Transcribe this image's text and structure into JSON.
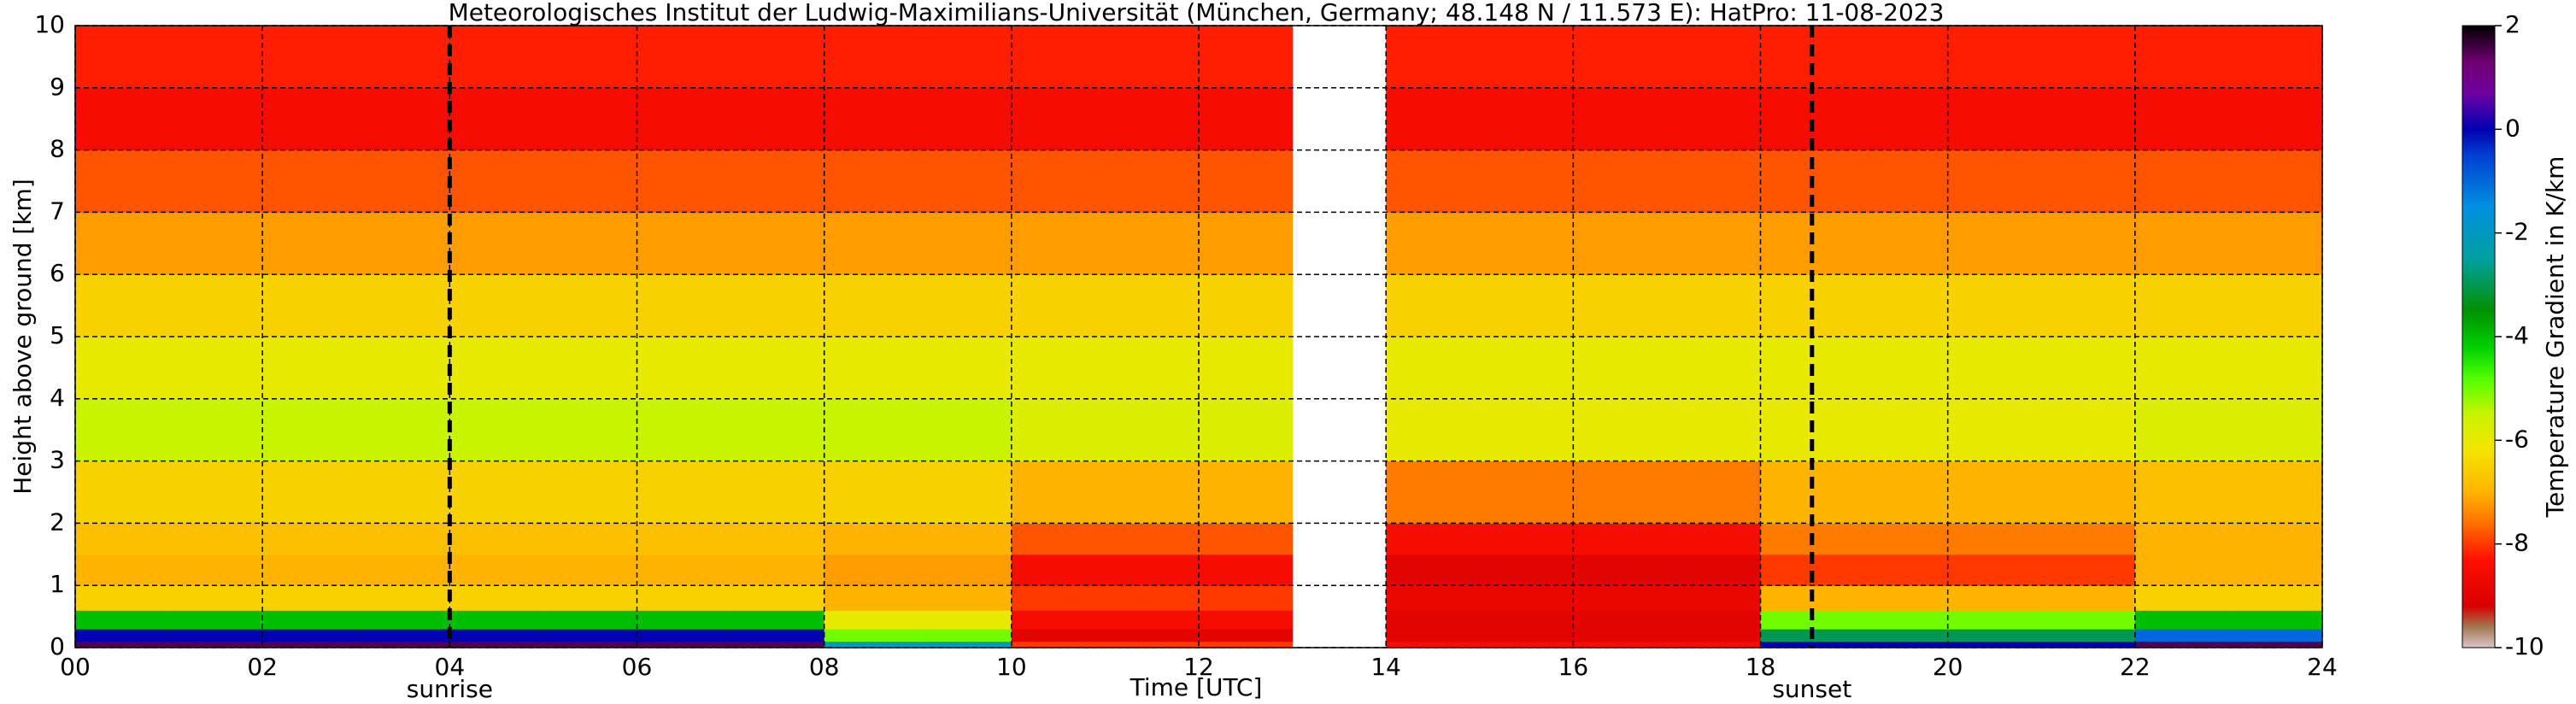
{
  "chart_data": {
    "type": "heatmap",
    "title": "Meteorologisches Institut der Ludwig-Maximilians-Universität (München, Germany; 48.148 N / 11.573 E):    HatPro: 11-08-2023",
    "xlabel": "Time [UTC]",
    "ylabel": "Height above ground [km]",
    "colorbar_label": "Temperature Gradient in K/km",
    "x_bins": [
      0,
      1,
      2,
      3,
      4,
      5,
      6,
      7,
      8,
      9,
      10,
      11,
      12,
      13,
      14,
      15,
      16,
      17,
      18,
      19,
      20,
      21,
      22,
      23,
      24
    ],
    "y_bins": [
      0,
      0.1,
      0.3,
      0.6,
      1,
      1.5,
      2,
      3,
      4,
      5,
      6,
      7,
      8,
      9,
      10
    ],
    "z": [
      [
        1.5,
        1.5,
        1.5,
        1.5,
        1.5,
        1.5,
        1.5,
        1.5,
        -2,
        -2,
        -8,
        -8,
        -8,
        null,
        -8.5,
        -8.5,
        -8.5,
        -8.5,
        0,
        0,
        0,
        0,
        1.5,
        1.5
      ],
      [
        0,
        0,
        0,
        0,
        0,
        0,
        0,
        0,
        -5,
        -5,
        -9,
        -9,
        -9,
        null,
        -9,
        -9,
        -9,
        -9,
        -3,
        -3,
        -3,
        -3,
        -1,
        -1
      ],
      [
        -4,
        -4,
        -4,
        -4,
        -4,
        -4,
        -4,
        -4,
        -6,
        -6,
        -8.5,
        -8.5,
        -8.5,
        null,
        -9,
        -9,
        -9,
        -9,
        -5,
        -5,
        -5,
        -5,
        -4,
        -4
      ],
      [
        -6.5,
        -6.5,
        -6.5,
        -6.5,
        -6.5,
        -6.5,
        -6.5,
        -6.5,
        -7,
        -7,
        -8,
        -8,
        -8,
        null,
        -8.8,
        -8.8,
        -8.8,
        -8.8,
        -7,
        -7,
        -7,
        -7,
        -6.5,
        -6.5
      ],
      [
        -7,
        -7,
        -7,
        -7,
        -7,
        -7,
        -7,
        -7,
        -7.2,
        -7.2,
        -8.5,
        -8.5,
        -8.5,
        null,
        -9,
        -9,
        -9,
        -9,
        -8,
        -8,
        -8,
        -8,
        -7,
        -7
      ],
      [
        -6.8,
        -6.8,
        -6.8,
        -6.8,
        -6.8,
        -6.8,
        -6.8,
        -6.8,
        -7,
        -7,
        -7.8,
        -7.8,
        -7.8,
        null,
        -8.5,
        -8.5,
        -8.5,
        -8.5,
        -7.5,
        -7.5,
        -7.5,
        -7.5,
        -7,
        -7
      ],
      [
        -6.5,
        -6.5,
        -6.5,
        -6.5,
        -6.5,
        -6.5,
        -6.5,
        -6.5,
        -6.5,
        -6.5,
        -7,
        -7,
        -7,
        null,
        -7.5,
        -7.5,
        -7.5,
        -7.5,
        -7,
        -7,
        -7,
        -7,
        -6.8,
        -6.8
      ],
      [
        -5.5,
        -5.5,
        -5.5,
        -5.5,
        -5.5,
        -5.5,
        -5.5,
        -5.5,
        -5.5,
        -5.5,
        -5.8,
        -5.8,
        -5.8,
        null,
        -6,
        -6,
        -6,
        -6,
        -6,
        -6,
        -6,
        -6,
        -5.8,
        -5.8
      ],
      [
        -6,
        -6,
        -6,
        -6,
        -6,
        -6,
        -6,
        -6,
        -6,
        -6,
        -6,
        -6,
        -6,
        null,
        -6,
        -6,
        -6,
        -6,
        -6,
        -6,
        -6,
        -6,
        -6,
        -6
      ],
      [
        -6.5,
        -6.5,
        -6.5,
        -6.5,
        -6.5,
        -6.5,
        -6.5,
        -6.5,
        -6.5,
        -6.5,
        -6.5,
        -6.5,
        -6.5,
        null,
        -6.5,
        -6.5,
        -6.5,
        -6.5,
        -6.5,
        -6.5,
        -6.5,
        -6.5,
        -6.5,
        -6.5
      ],
      [
        -7.2,
        -7.2,
        -7.2,
        -7.2,
        -7.2,
        -7.2,
        -7.2,
        -7.2,
        -7.2,
        -7.2,
        -7.2,
        -7.2,
        -7.2,
        null,
        -7.2,
        -7.2,
        -7.2,
        -7.2,
        -7.2,
        -7.2,
        -7.2,
        -7.2,
        -7.2,
        -7.2
      ],
      [
        -7.8,
        -7.8,
        -7.8,
        -7.8,
        -7.8,
        -7.8,
        -7.8,
        -7.8,
        -7.8,
        -7.8,
        -7.8,
        -7.8,
        -7.8,
        null,
        -7.8,
        -7.8,
        -7.8,
        -7.8,
        -7.8,
        -7.8,
        -7.8,
        -7.8,
        -7.8,
        -7.8
      ],
      [
        -8.5,
        -8.5,
        -8.5,
        -8.5,
        -8.5,
        -8.5,
        -8.5,
        -8.5,
        -8.5,
        -8.5,
        -8.5,
        -8.5,
        -8.5,
        null,
        -8.5,
        -8.5,
        -8.5,
        -8.5,
        -8.5,
        -8.5,
        -8.5,
        -8.5,
        -8.5,
        -8.5
      ],
      [
        -8.2,
        -8.2,
        -8.2,
        -8.2,
        -8.2,
        -8.2,
        -8.2,
        -8.2,
        -8.2,
        -8.2,
        -8.2,
        -8.2,
        -8.2,
        null,
        -8.2,
        -8.2,
        -8.2,
        -8.2,
        -8.2,
        -8.2,
        -8.2,
        -8.2,
        -8.2,
        -8.2
      ]
    ],
    "xlim": [
      0,
      24
    ],
    "ylim": [
      0,
      10
    ],
    "clim": [
      -10,
      2
    ],
    "xticks": [
      {
        "value": 0,
        "label": "00"
      },
      {
        "value": 2,
        "label": "02"
      },
      {
        "value": 4,
        "label": "04"
      },
      {
        "value": 6,
        "label": "06"
      },
      {
        "value": 8,
        "label": "08"
      },
      {
        "value": 10,
        "label": "10"
      },
      {
        "value": 12,
        "label": "12"
      },
      {
        "value": 14,
        "label": "14"
      },
      {
        "value": 16,
        "label": "16"
      },
      {
        "value": 18,
        "label": "18"
      },
      {
        "value": 20,
        "label": "20"
      },
      {
        "value": 22,
        "label": "22"
      },
      {
        "value": 24,
        "label": "24"
      }
    ],
    "yticks": [
      0,
      1,
      2,
      3,
      4,
      5,
      6,
      7,
      8,
      9,
      10
    ],
    "cticks": [
      2,
      0,
      -2,
      -4,
      -6,
      -8,
      -10
    ],
    "grid": true,
    "colormap": [
      [
        -10,
        "#dcc4cc"
      ],
      [
        -9.6,
        "#a07850"
      ],
      [
        -9.2,
        "#d80000"
      ],
      [
        -8.3,
        "#ff1000"
      ],
      [
        -7.6,
        "#ff7000"
      ],
      [
        -7,
        "#ffb400"
      ],
      [
        -6.2,
        "#f4e400"
      ],
      [
        -5.5,
        "#c8f400"
      ],
      [
        -4.8,
        "#50ff00"
      ],
      [
        -4.2,
        "#00d000"
      ],
      [
        -3.5,
        "#009000"
      ],
      [
        -2.5,
        "#00a0a0"
      ],
      [
        -1.5,
        "#0090e0"
      ],
      [
        -0.5,
        "#0040d0"
      ],
      [
        0,
        "#0000b0"
      ],
      [
        0.7,
        "#7000a0"
      ],
      [
        1.3,
        "#700070"
      ],
      [
        2,
        "#000000"
      ]
    ],
    "annotations": [
      {
        "text": "sunrise",
        "x": 4
      },
      {
        "text": "sunset",
        "x": 18.55
      }
    ]
  }
}
